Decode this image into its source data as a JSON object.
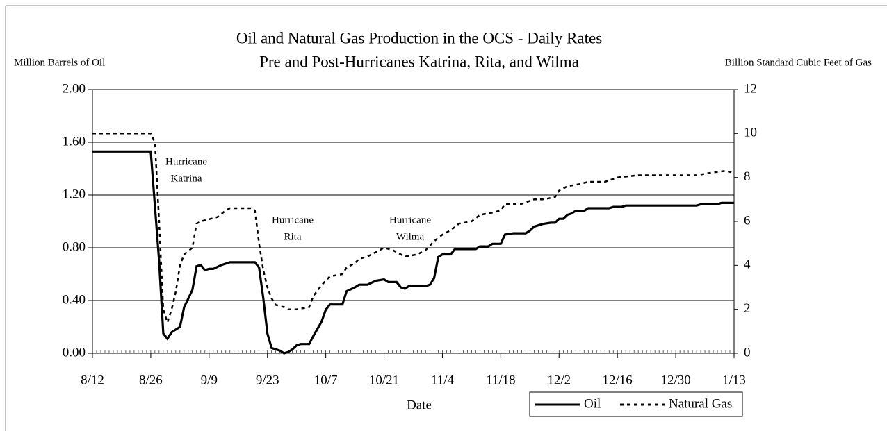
{
  "chart_data": {
    "type": "line",
    "title": "Oil and Natural Gas Production in the OCS - Daily Rates",
    "subtitle": "Pre and Post-Hurricanes Katrina, Rita, and Wilma",
    "y_label": "Million Barrels of Oil",
    "y2_label": "Billion Standard Cubic Feet of Gas",
    "x_label": "Date",
    "xlim": [
      "8/12",
      "1/13"
    ],
    "xticks": [
      "8/12",
      "8/26",
      "9/9",
      "9/23",
      "10/7",
      "10/21",
      "11/4",
      "11/18",
      "12/2",
      "12/16",
      "12/30",
      "1/13"
    ],
    "ylim": [
      0,
      2
    ],
    "yticks": [
      {
        "value": 0,
        "label": "0.00"
      },
      {
        "value": 0.4,
        "label": "0.40"
      },
      {
        "value": 0.8,
        "label": "0.80"
      },
      {
        "value": 1.2,
        "label": "1.20"
      },
      {
        "value": 1.6,
        "label": "1.60"
      },
      {
        "value": 2,
        "label": "2.00"
      }
    ],
    "y2lim": [
      0,
      12
    ],
    "y2ticks": [
      0,
      2,
      4,
      6,
      8,
      10,
      12
    ],
    "grid": true,
    "legend": "bottom-right",
    "annotations": [
      [
        "Hurricane",
        "Katrina"
      ],
      [
        "Hurricane",
        "Rita"
      ],
      [
        "Hurricane",
        "Wilma"
      ]
    ],
    "series": [
      {
        "name": "Oil",
        "color": "#000000",
        "dash": "solid",
        "x": [
          "8/12",
          "8/26",
          "8/28",
          "8/29",
          "8/30",
          "8/31",
          "9/1",
          "9/2",
          "9/3",
          "9/5",
          "9/6",
          "9/7",
          "9/8",
          "9/9",
          "9/10",
          "9/12",
          "9/14",
          "9/18",
          "9/20",
          "9/21",
          "9/22",
          "9/23",
          "9/24",
          "9/25",
          "9/26",
          "9/27",
          "9/28",
          "9/29",
          "9/30",
          "10/1",
          "10/3",
          "10/4",
          "10/6",
          "10/7",
          "10/8",
          "10/11",
          "10/12",
          "10/14",
          "10/15",
          "10/17",
          "10/19",
          "10/21",
          "10/22",
          "10/24",
          "10/25",
          "10/26",
          "10/27",
          "10/31",
          "11/1",
          "11/2",
          "11/3",
          "11/4",
          "11/6",
          "11/7",
          "11/12",
          "11/13",
          "11/15",
          "11/16",
          "11/18",
          "11/19",
          "11/21",
          "11/24",
          "11/25",
          "11/26",
          "11/28",
          "11/30",
          "12/1",
          "12/2",
          "12/3",
          "12/4",
          "12/5",
          "12/6",
          "12/8",
          "12/9",
          "12/14",
          "12/15",
          "12/17",
          "12/18",
          "1/4",
          "1/5",
          "1/9",
          "1/10",
          "1/13"
        ],
        "values": [
          1.53,
          1.53,
          0.7,
          0.15,
          0.11,
          0.16,
          0.18,
          0.2,
          0.35,
          0.48,
          0.66,
          0.67,
          0.63,
          0.64,
          0.64,
          0.67,
          0.69,
          0.69,
          0.69,
          0.65,
          0.42,
          0.15,
          0.04,
          0.03,
          0.02,
          0.0,
          0.01,
          0.03,
          0.06,
          0.07,
          0.07,
          0.13,
          0.24,
          0.33,
          0.37,
          0.37,
          0.47,
          0.5,
          0.52,
          0.52,
          0.55,
          0.56,
          0.54,
          0.54,
          0.5,
          0.49,
          0.51,
          0.51,
          0.52,
          0.57,
          0.73,
          0.75,
          0.75,
          0.79,
          0.79,
          0.81,
          0.81,
          0.83,
          0.83,
          0.9,
          0.91,
          0.91,
          0.93,
          0.96,
          0.98,
          0.99,
          0.99,
          1.02,
          1.02,
          1.05,
          1.06,
          1.08,
          1.08,
          1.1,
          1.1,
          1.11,
          1.11,
          1.12,
          1.12,
          1.13,
          1.13,
          1.14,
          1.14
        ]
      },
      {
        "name": "Natural Gas",
        "color": "#000000",
        "dash": "dotted",
        "axis": "y2",
        "x": [
          "8/12",
          "8/26",
          "8/27",
          "8/28",
          "8/29",
          "8/30",
          "8/31",
          "9/1",
          "9/2",
          "9/3",
          "9/5",
          "9/6",
          "9/7",
          "9/9",
          "9/11",
          "9/13",
          "9/14",
          "9/19",
          "9/20",
          "9/21",
          "9/22",
          "9/23",
          "9/24",
          "9/25",
          "9/27",
          "9/28",
          "9/30",
          "10/3",
          "10/4",
          "10/6",
          "10/8",
          "10/11",
          "10/12",
          "10/14",
          "10/15",
          "10/17",
          "10/19",
          "10/21",
          "10/23",
          "10/25",
          "10/26",
          "10/29",
          "10/31",
          "11/2",
          "11/4",
          "11/6",
          "11/8",
          "11/11",
          "11/13",
          "11/16",
          "11/18",
          "11/19",
          "11/23",
          "11/26",
          "11/28",
          "12/1",
          "12/2",
          "12/4",
          "12/7",
          "12/9",
          "12/13",
          "12/16",
          "12/21",
          "12/30",
          "1/4",
          "1/7",
          "1/11",
          "1/13"
        ],
        "values": [
          10.0,
          10.0,
          9.6,
          6.0,
          2.0,
          1.4,
          2.0,
          2.8,
          4.0,
          4.5,
          4.8,
          5.9,
          6.0,
          6.1,
          6.2,
          6.5,
          6.6,
          6.6,
          6.5,
          5.0,
          3.8,
          3.0,
          2.5,
          2.2,
          2.1,
          2.0,
          2.0,
          2.1,
          2.6,
          3.1,
          3.5,
          3.6,
          3.9,
          4.1,
          4.3,
          4.4,
          4.6,
          4.8,
          4.7,
          4.5,
          4.4,
          4.5,
          4.7,
          5.1,
          5.4,
          5.6,
          5.9,
          6.0,
          6.3,
          6.4,
          6.5,
          6.8,
          6.8,
          7.0,
          7.0,
          7.1,
          7.4,
          7.6,
          7.7,
          7.8,
          7.8,
          8.0,
          8.1,
          8.1,
          8.1,
          8.2,
          8.3,
          8.2
        ]
      }
    ]
  }
}
